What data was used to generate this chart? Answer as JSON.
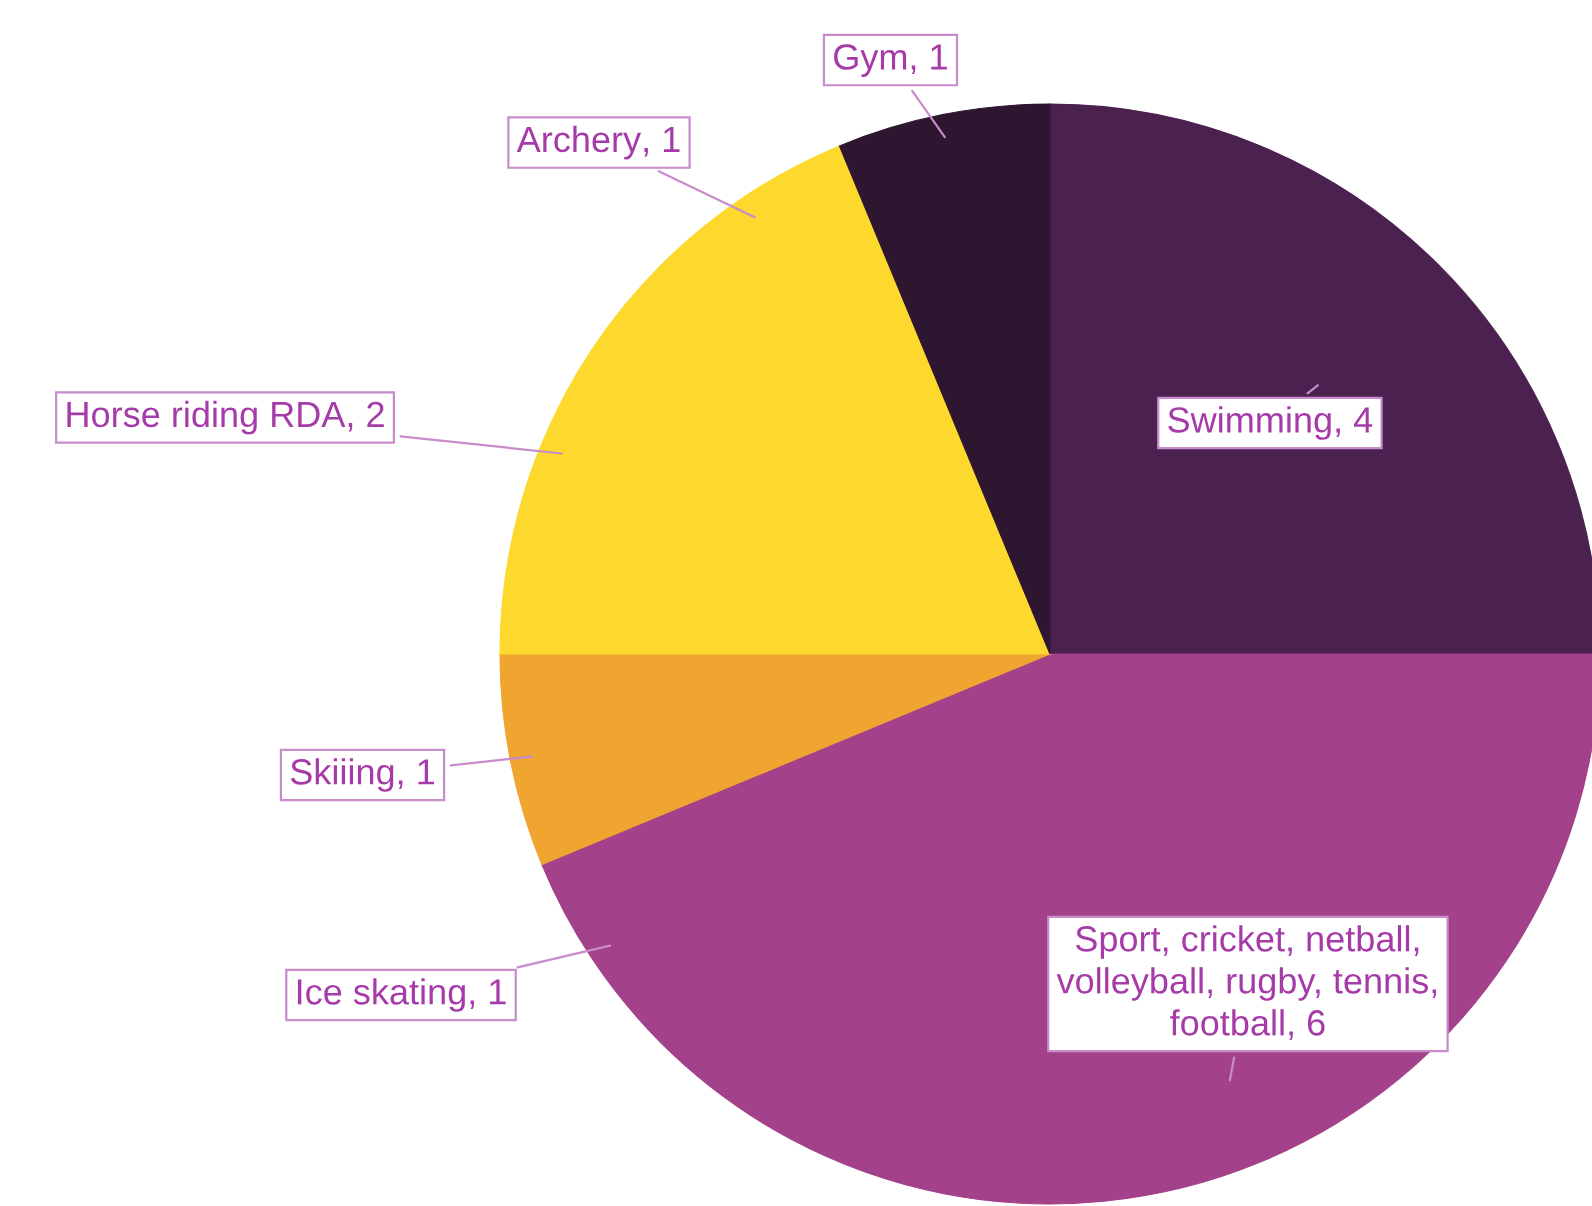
{
  "chart_data": {
    "type": "pie",
    "categories": [
      "Swimming",
      "Sport, cricket, netball,\nvolleyball, rugby, tennis,\nfootball",
      "Ice skating",
      "Skiiing",
      "Horse riding RDA",
      "Archery",
      "Gym"
    ],
    "values": [
      4,
      6,
      1,
      1,
      2,
      1,
      1
    ],
    "colors": [
      "#4b2150",
      "#a3418a",
      "#a3418a",
      "#f0a530",
      "#fcd92c",
      "#fcd92c",
      "#2e1631"
    ],
    "value_labels": [
      ", 4",
      ", 6",
      ", 1",
      ", 1",
      ", 2",
      ", 1",
      ", 1"
    ],
    "legend": false
  }
}
